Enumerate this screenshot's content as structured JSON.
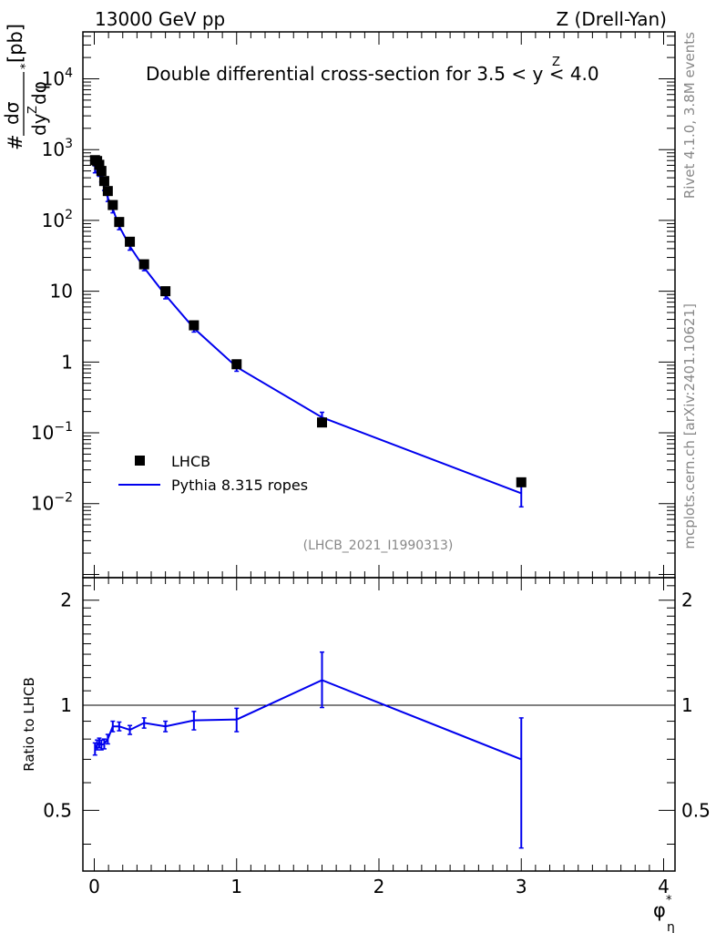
{
  "header": {
    "left": "13000 GeV pp",
    "right": "Z (Drell-Yan)"
  },
  "side_labels": {
    "rivet": "Rivet 4.1.0,  3.8M events",
    "mcplots": "mcplots.cern.ch [arXiv:2401.10621]"
  },
  "chart_data": [
    {
      "type": "scatter",
      "panel": "main",
      "title": "Double differential cross-section for 3.5 < y^Z < 4.0",
      "title_text": "Double differential cross-section for 3.5 < ",
      "title_y": "y",
      "title_y_super": "Z",
      "title_tail": " < 4.0",
      "ylabel": "d²σ / dy^Z dφ*_η [pb]",
      "ylabel_parts": {
        "hash": "#",
        "num": "dσ",
        "den": "dy",
        "den_super": "Z",
        "den_tail": "dφ",
        "star": "*",
        "unit": "[pb]"
      },
      "xlabel": "φ*η",
      "xlim": [
        -0.08,
        4.08
      ],
      "ylim": [
        0.0009,
        46000
      ],
      "yscale": "log",
      "yticks": [
        {
          "value": 0.01,
          "base": "10",
          "exp": "−2"
        },
        {
          "value": 0.1,
          "base": "10",
          "exp": "−1"
        },
        {
          "value": 1,
          "base": "1",
          "exp": ""
        },
        {
          "value": 10,
          "base": "10",
          "exp": ""
        },
        {
          "value": 100,
          "base": "10",
          "exp": "2"
        },
        {
          "value": 1000,
          "base": "10",
          "exp": "3"
        },
        {
          "value": 10000,
          "base": "10",
          "exp": "4"
        }
      ],
      "legend": {
        "placement": "lower-left",
        "entries": [
          "LHCB",
          "Pythia 8.315 ropes"
        ]
      },
      "watermark": "(LHCB_2021_I1990313)",
      "series": [
        {
          "name": "LHCB",
          "style": "marker-square",
          "color": "#000000",
          "x": [
            0.005,
            0.02,
            0.035,
            0.05,
            0.07,
            0.095,
            0.13,
            0.175,
            0.25,
            0.35,
            0.5,
            0.7,
            1.0,
            1.6,
            3.0
          ],
          "y": [
            710,
            690,
            610,
            500,
            360,
            260,
            165,
            95,
            50,
            24,
            10,
            3.3,
            0.93,
            0.14,
            0.02
          ]
        },
        {
          "name": "Pythia 8.315 ropes",
          "style": "line",
          "color": "#0000ee",
          "x": [
            0.005,
            0.02,
            0.035,
            0.05,
            0.07,
            0.095,
            0.13,
            0.175,
            0.25,
            0.35,
            0.5,
            0.7,
            1.0,
            1.6,
            3.0
          ],
          "y": [
            530,
            540,
            470,
            390,
            300,
            210,
            145,
            83,
            43,
            21.5,
            8.8,
            3.0,
            0.85,
            0.165,
            0.014
          ],
          "err_lo": [
            470,
            480,
            420,
            350,
            265,
            185,
            128,
            74,
            38,
            19.5,
            7.8,
            2.65,
            0.74,
            0.14,
            0.009
          ],
          "err_hi": [
            590,
            600,
            520,
            430,
            335,
            235,
            162,
            92,
            48,
            23.5,
            9.8,
            3.35,
            0.96,
            0.195,
            0.019
          ]
        }
      ]
    },
    {
      "type": "line",
      "panel": "ratio",
      "ylabel": "Ratio to LHCB",
      "xlabel": "φ*η",
      "xlim": [
        -0.08,
        4.08
      ],
      "ylim": [
        0.335,
        2.32
      ],
      "yscale": "log",
      "yticks": [
        {
          "value": 0.5,
          "label": "0.5"
        },
        {
          "value": 1,
          "label": "1"
        },
        {
          "value": 2,
          "label": "2"
        }
      ],
      "xticks": [
        {
          "value": 0,
          "label": "0"
        },
        {
          "value": 1,
          "label": "1"
        },
        {
          "value": 2,
          "label": "2"
        },
        {
          "value": 3,
          "label": "3"
        },
        {
          "value": 4,
          "label": "4"
        }
      ],
      "reference_line": 1,
      "series": [
        {
          "name": "Pythia 8.315 ropes / LHCB",
          "color": "#0000ee",
          "x": [
            0.005,
            0.02,
            0.035,
            0.05,
            0.07,
            0.095,
            0.13,
            0.175,
            0.25,
            0.35,
            0.5,
            0.7,
            1.0,
            1.6,
            3.0
          ],
          "y": [
            0.75,
            0.77,
            0.78,
            0.77,
            0.775,
            0.8,
            0.87,
            0.87,
            0.85,
            0.89,
            0.87,
            0.905,
            0.91,
            1.18,
            0.7
          ],
          "err_lo": [
            0.72,
            0.745,
            0.755,
            0.745,
            0.75,
            0.775,
            0.84,
            0.845,
            0.825,
            0.86,
            0.84,
            0.85,
            0.84,
            0.985,
            0.39
          ],
          "err_hi": [
            0.78,
            0.795,
            0.805,
            0.795,
            0.8,
            0.825,
            0.9,
            0.895,
            0.875,
            0.92,
            0.9,
            0.96,
            0.98,
            1.42,
            0.92
          ]
        }
      ]
    }
  ]
}
